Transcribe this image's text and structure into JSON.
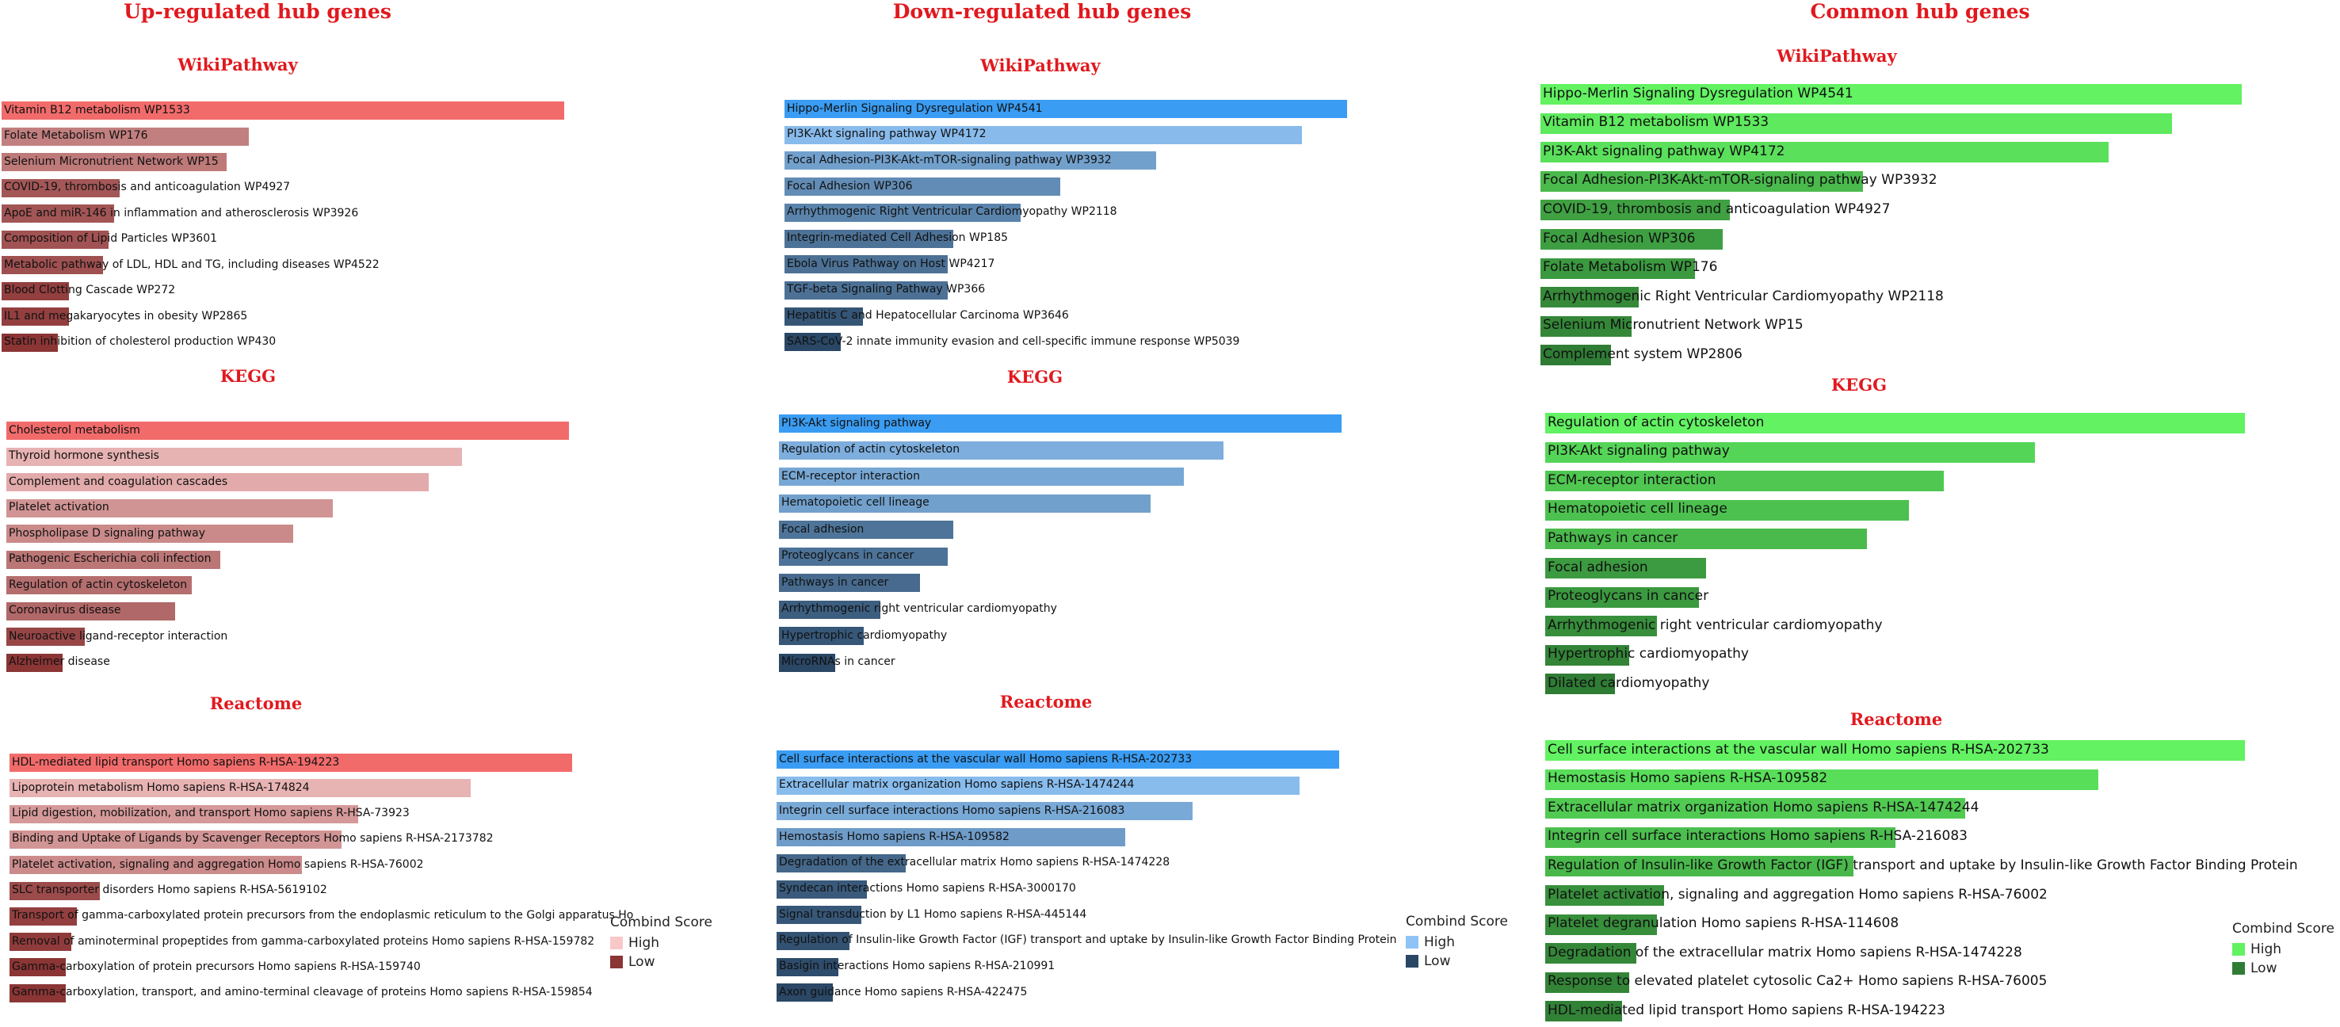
{
  "chart_data": [
    {
      "type": "bar",
      "orientation": "horizontal",
      "title": "Up-regulated hub genes",
      "color_high": "#f8c8c8",
      "color_low": "#8b3535",
      "color_top": "#f26b6b",
      "legend": {
        "title": "Combind Score",
        "high": "High",
        "low": "Low"
      },
      "sections": [
        {
          "name": "WikiPathway",
          "categories": [
            "Vitamin B12 metabolism WP1533",
            "Folate Metabolism WP176",
            "Selenium Micronutrient Network WP15",
            "COVID-19, thrombosis and anticoagulation WP4927",
            "ApoE and miR-146 in inflammation and atherosclerosis WP3926",
            "Composition of Lipid Particles WP3601",
            "Metabolic pathway of LDL, HDL and TG, including diseases WP4522",
            "Blood Clotting Cascade WP272",
            "IL1 and megakaryocytes in obesity WP2865",
            "Statin inhibition of cholesterol production WP430"
          ],
          "values": [
            100,
            44,
            40,
            21,
            20,
            19,
            18,
            12,
            12,
            10
          ]
        },
        {
          "name": "KEGG",
          "categories": [
            "Cholesterol metabolism",
            "Thyroid hormone synthesis",
            "Complement and coagulation cascades",
            "Platelet activation",
            "Phospholipase D signaling pathway",
            "Pathogenic Escherichia coli infection",
            "Regulation of actin cytoskeleton",
            "Coronavirus disease",
            "Neuroactive ligand-receptor interaction",
            "Alzheimer disease"
          ],
          "values": [
            100,
            81,
            75,
            58,
            51,
            38,
            33,
            30,
            14,
            10
          ]
        },
        {
          "name": "Reactome",
          "categories": [
            "HDL-mediated lipid transport Homo sapiens R-HSA-194223",
            "Lipoprotein metabolism Homo sapiens R-HSA-174824",
            "Lipid digestion, mobilization, and transport Homo sapiens R-HSA-73923",
            "Binding and Uptake of Ligands by Scavenger Receptors Homo sapiens R-HSA-2173782",
            "Platelet activation, signaling and aggregation Homo sapiens R-HSA-76002",
            "SLC transporter disorders Homo sapiens R-HSA-5619102",
            "Transport of gamma-carboxylated protein precursors from the endoplasmic reticulum to the Golgi apparatus Ho",
            "Removal of aminoterminal propeptides from gamma-carboxylated proteins Homo sapiens R-HSA-159782",
            "Gamma-carboxylation of protein precursors Homo sapiens R-HSA-159740",
            "Gamma-carboxylation, transport, and amino-terminal cleavage of proteins Homo sapiens R-HSA-159854"
          ],
          "values": [
            100,
            82,
            62,
            59,
            52,
            16,
            12,
            11,
            10,
            10
          ]
        }
      ]
    },
    {
      "type": "bar",
      "orientation": "horizontal",
      "title": "Down-regulated hub genes",
      "color_high": "#8ec3f5",
      "color_low": "#2a4765",
      "color_top": "#3a9cf2",
      "legend": {
        "title": "Combind Score",
        "high": "High",
        "low": "Low"
      },
      "sections": [
        {
          "name": "WikiPathway",
          "categories": [
            "Hippo-Merlin Signaling Dysregulation WP4541",
            "PI3K-Akt signaling pathway WP4172",
            "Focal Adhesion-PI3K-Akt-mTOR-signaling pathway WP3932",
            "Focal Adhesion WP306",
            "Arrhythmogenic Right Ventricular Cardiomyopathy WP2118",
            "Integrin-mediated Cell Adhesion WP185",
            "Ebola Virus Pathway on Host WP4217",
            "TGF-beta Signaling Pathway WP366",
            "Hepatitis C and Hepatocellular Carcinoma WP3646",
            "SARS-CoV-2 innate immunity evasion and cell-specific immune response WP5039"
          ],
          "values": [
            100,
            92,
            66,
            49,
            42,
            30,
            29,
            29,
            14,
            10
          ]
        },
        {
          "name": "KEGG",
          "categories": [
            "PI3K-Akt signaling pathway",
            "Regulation of actin cytoskeleton",
            "ECM-receptor interaction",
            "Hematopoietic cell lineage",
            "Focal adhesion",
            "Proteoglycans in cancer",
            "Pathways in cancer",
            "Arrhythmogenic right ventricular cardiomyopathy",
            "Hypertrophic cardiomyopathy",
            "MicroRNAs in cancer"
          ],
          "values": [
            100,
            79,
            72,
            66,
            31,
            30,
            25,
            18,
            15,
            10
          ]
        },
        {
          "name": "Reactome",
          "categories": [
            "Cell surface interactions at the vascular wall Homo sapiens R-HSA-202733",
            "Extracellular matrix organization Homo sapiens R-HSA-1474244",
            "Integrin cell surface interactions Homo sapiens R-HSA-216083",
            "Hemostasis Homo sapiens R-HSA-109582",
            "Degradation of the extracellular matrix Homo sapiens R-HSA-1474228",
            "Syndecan interactions Homo sapiens R-HSA-3000170",
            "Signal transduction by L1 Homo sapiens R-HSA-445144",
            "Regulation of Insulin-like Growth Factor (IGF) transport and uptake by Insulin-like Growth Factor Binding Protein",
            "Basigin interactions Homo sapiens R-HSA-210991",
            "Axon guidance Homo sapiens R-HSA-422475"
          ],
          "values": [
            100,
            93,
            74,
            62,
            23,
            16,
            15,
            13,
            11,
            10
          ]
        }
      ]
    },
    {
      "type": "bar",
      "orientation": "horizontal",
      "title": "Common hub genes",
      "color_high": "#62f262",
      "color_low": "#2f7c34",
      "color_top": "#62f262",
      "legend": {
        "title": "Combind Score",
        "high": "High",
        "low": "Low"
      },
      "sections": [
        {
          "name": "WikiPathway",
          "categories": [
            "Hippo-Merlin Signaling Dysregulation WP4541",
            "Vitamin B12 metabolism WP1533",
            "PI3K-Akt signaling pathway WP4172",
            "Focal Adhesion-PI3K-Akt-mTOR-signaling pathway WP3932",
            "COVID-19, thrombosis and anticoagulation WP4927",
            "Focal Adhesion WP306",
            "Folate Metabolism WP176",
            "Arrhythmogenic Right Ventricular Cardiomyopathy WP2118",
            "Selenium Micronutrient Network WP15",
            "Complement system WP2806"
          ],
          "values": [
            100,
            90,
            81,
            46,
            27,
            26,
            22,
            14,
            13,
            10
          ]
        },
        {
          "name": "KEGG",
          "categories": [
            "Regulation of actin cytoskeleton",
            "PI3K-Akt signaling pathway",
            "ECM-receptor interaction",
            "Hematopoietic cell lineage",
            "Pathways in cancer",
            "Focal adhesion",
            "Proteoglycans in cancer",
            "Arrhythmogenic right ventricular cardiomyopathy",
            "Hypertrophic cardiomyopathy",
            "Dilated cardiomyopathy"
          ],
          "values": [
            100,
            70,
            57,
            52,
            46,
            23,
            22,
            16,
            12,
            10
          ]
        },
        {
          "name": "Reactome",
          "categories": [
            "Cell surface interactions at the vascular wall Homo sapiens R-HSA-202733",
            "Hemostasis Homo sapiens R-HSA-109582",
            "Extracellular matrix organization Homo sapiens R-HSA-1474244",
            "Integrin cell surface interactions Homo sapiens R-HSA-216083",
            "Regulation of Insulin-like Growth Factor (IGF) transport and uptake by Insulin-like Growth Factor Binding Protein",
            "Platelet activation, signaling and aggregation Homo sapiens R-HSA-76002",
            "Platelet degranulation Homo sapiens R-HSA-114608",
            "Degradation of the extracellular matrix Homo sapiens R-HSA-1474228",
            "Response to elevated platelet cytosolic Ca2+ Homo sapiens R-HSA-76005",
            "HDL-mediated lipid transport Homo sapiens R-HSA-194223"
          ],
          "values": [
            100,
            79,
            60,
            50,
            44,
            17,
            16,
            13,
            12,
            11
          ]
        }
      ]
    }
  ]
}
